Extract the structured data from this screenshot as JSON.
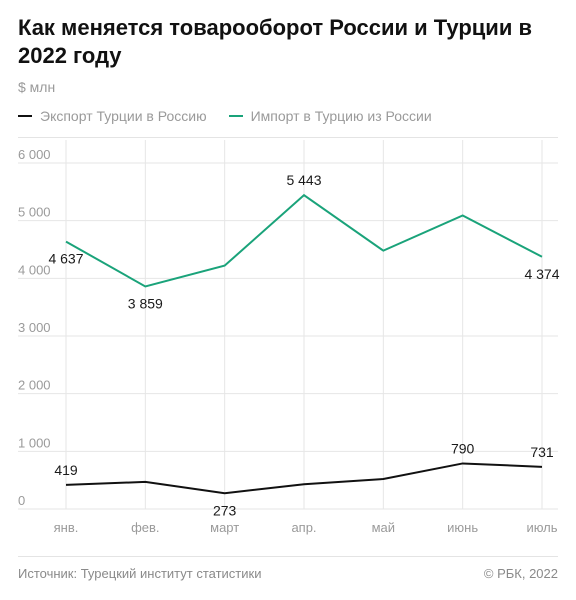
{
  "title": "Как меняется товарооборот России и Турции в 2022 году",
  "unit_label": "$ млн",
  "legend": [
    {
      "label": "Экспорт Турции в Россию",
      "color": "#111111"
    },
    {
      "label": "Импорт в Турцию из России",
      "color": "#1aa37a"
    }
  ],
  "footer": {
    "source": "Источник: Турецкий институт статистики",
    "copyright": "© РБК, 2022"
  },
  "chart_data": {
    "type": "line",
    "categories": [
      "янв.",
      "фев.",
      "март",
      "апр.",
      "май",
      "июнь",
      "июль"
    ],
    "y_ticks": [
      0,
      1000,
      2000,
      3000,
      4000,
      5000,
      6000
    ],
    "y_tick_labels": [
      "0",
      "1 000",
      "2 000",
      "3 000",
      "4 000",
      "5 000",
      "6 000"
    ],
    "ylim": [
      0,
      6000
    ],
    "grid": true,
    "legend_position": "top-left",
    "series": [
      {
        "name": "Экспорт Турции в Россию",
        "color": "#111111",
        "values": [
          419,
          470,
          273,
          430,
          520,
          790,
          731
        ],
        "labels": [
          "419",
          "",
          "273",
          "",
          "",
          "790",
          "731"
        ],
        "label_side": [
          "above",
          "",
          "below",
          "",
          "",
          "above",
          "above"
        ]
      },
      {
        "name": "Импорт в Турцию из России",
        "color": "#1aa37a",
        "values": [
          4637,
          3859,
          4220,
          5443,
          4480,
          5090,
          4374
        ],
        "labels": [
          "4 637",
          "3 859",
          "",
          "5 443",
          "",
          "",
          "4 374"
        ],
        "label_side": [
          "below",
          "below",
          "",
          "above",
          "",
          "",
          "below"
        ]
      }
    ]
  }
}
